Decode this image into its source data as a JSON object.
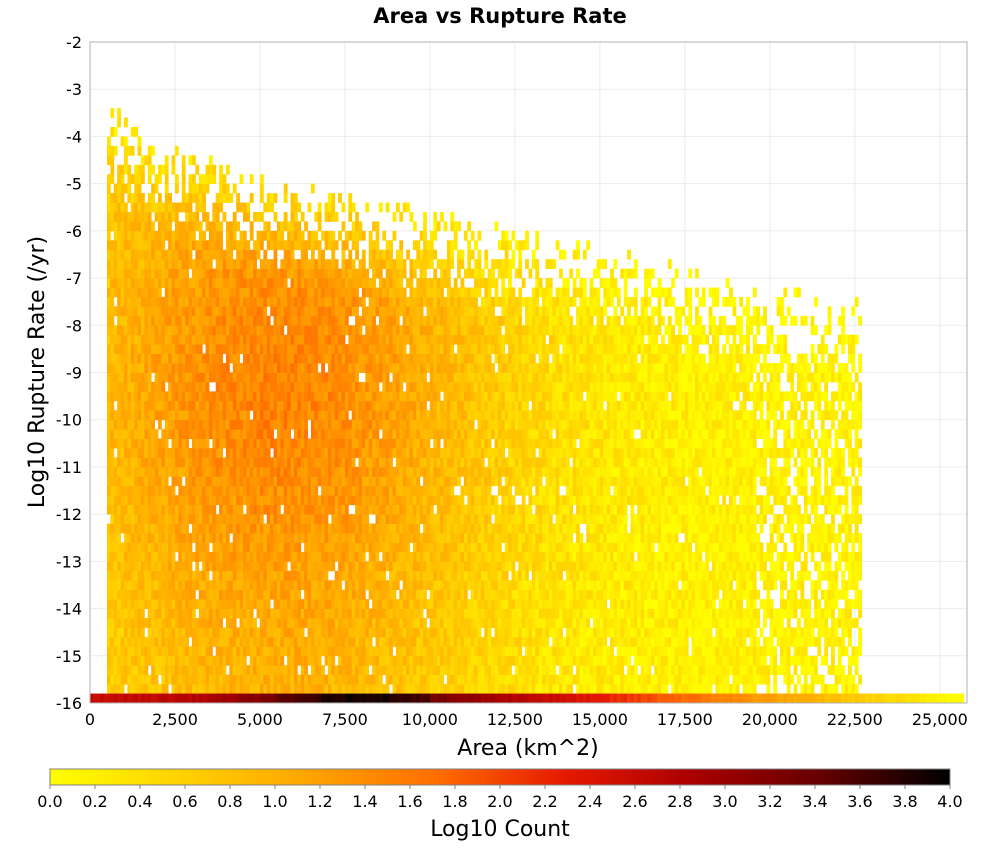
{
  "chart_data": {
    "type": "heatmap",
    "title": "Area vs Rupture Rate",
    "xlabel": "Area (km^2)",
    "ylabel": "Log10 Rupture Rate (/yr)",
    "xlim": [
      0,
      25800
    ],
    "ylim": [
      -16,
      -2
    ],
    "x_ticks": [
      {
        "value": 0,
        "label": "0"
      },
      {
        "value": 2500,
        "label": "2,500"
      },
      {
        "value": 5000,
        "label": "5,000"
      },
      {
        "value": 7500,
        "label": "7,500"
      },
      {
        "value": 10000,
        "label": "10,000"
      },
      {
        "value": 12500,
        "label": "12,500"
      },
      {
        "value": 15000,
        "label": "15,000"
      },
      {
        "value": 17500,
        "label": "17,500"
      },
      {
        "value": 20000,
        "label": "20,000"
      },
      {
        "value": 22500,
        "label": "22,500"
      },
      {
        "value": 25000,
        "label": "25,000"
      }
    ],
    "y_ticks": [
      {
        "value": -2,
        "label": "-2"
      },
      {
        "value": -3,
        "label": "-3"
      },
      {
        "value": -4,
        "label": "-4"
      },
      {
        "value": -5,
        "label": "-5"
      },
      {
        "value": -6,
        "label": "-6"
      },
      {
        "value": -7,
        "label": "-7"
      },
      {
        "value": -8,
        "label": "-8"
      },
      {
        "value": -9,
        "label": "-9"
      },
      {
        "value": -10,
        "label": "-10"
      },
      {
        "value": -11,
        "label": "-11"
      },
      {
        "value": -12,
        "label": "-12"
      },
      {
        "value": -13,
        "label": "-13"
      },
      {
        "value": -14,
        "label": "-14"
      },
      {
        "value": -15,
        "label": "-15"
      },
      {
        "value": -16,
        "label": "-16"
      }
    ],
    "grid": true,
    "bin_width_x": 100,
    "bin_height_y": 0.2,
    "colorbar": {
      "label": "Log10 Count",
      "min": 0.0,
      "max": 4.0,
      "ticks": [
        "0.0",
        "0.2",
        "0.4",
        "0.6",
        "0.8",
        "1.0",
        "1.2",
        "1.4",
        "1.6",
        "1.8",
        "2.0",
        "2.2",
        "2.4",
        "2.6",
        "2.8",
        "3.0",
        "3.2",
        "3.4",
        "3.6",
        "3.8",
        "4.0"
      ],
      "colors": [
        "#ffff00",
        "#ffd200",
        "#ffa500",
        "#ff6e00",
        "#e61900",
        "#aa0000",
        "#640000",
        "#000000"
      ]
    },
    "density_model": {
      "description_units": "log10 count per 100 km^2 x 0.2 log10-rate bin",
      "x_min_area": 500,
      "main_max_area": 22700,
      "floor_row_rate": -15.9,
      "floor_row_x_range": [
        0,
        25700
      ],
      "floor_row_peak_area": 8000,
      "floor_row_peak_value": 3.9,
      "upper_envelope": [
        {
          "area": 500,
          "rate": -3.3
        },
        {
          "area": 1000,
          "rate": -3.7
        },
        {
          "area": 2000,
          "rate": -4.2
        },
        {
          "area": 5000,
          "rate": -5.0
        },
        {
          "area": 8000,
          "rate": -5.4
        },
        {
          "area": 12000,
          "rate": -6.0
        },
        {
          "area": 16000,
          "rate": -6.6
        },
        {
          "area": 19000,
          "rate": -7.2
        },
        {
          "area": 22700,
          "rate": -7.6
        }
      ],
      "peak_value": 1.5,
      "peak_area": 5500,
      "peak_rate": -9.5
    }
  }
}
